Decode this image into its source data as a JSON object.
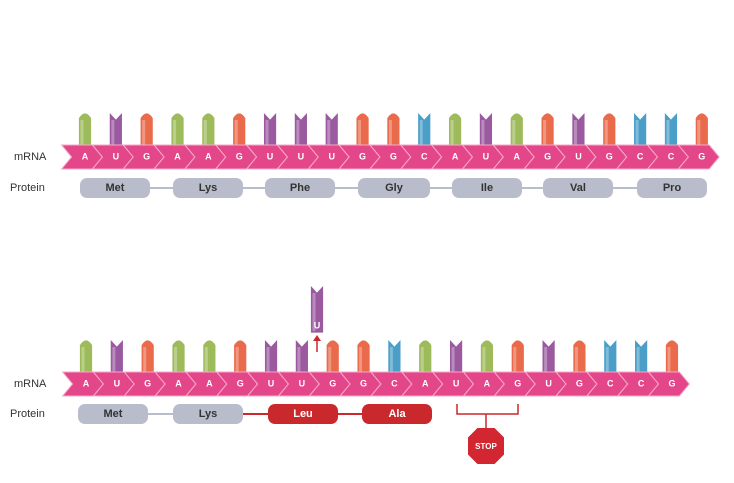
{
  "panels": [
    {
      "mrna_label": "mRNA",
      "protein_label": "Protein",
      "nucleotides": [
        "A",
        "U",
        "G",
        "A",
        "A",
        "G",
        "U",
        "U",
        "U",
        "G",
        "G",
        "C",
        "A",
        "U",
        "A",
        "G",
        "U",
        "G",
        "C",
        "C",
        "G"
      ],
      "proteins": [
        {
          "name": "Met",
          "color": "#b9bccb"
        },
        {
          "name": "Lys",
          "color": "#b9bccb"
        },
        {
          "name": "Phe",
          "color": "#b9bccb"
        },
        {
          "name": "Gly",
          "color": "#b9bccb"
        },
        {
          "name": "Ile",
          "color": "#b9bccb"
        },
        {
          "name": "Val",
          "color": "#b9bccb"
        },
        {
          "name": "Pro",
          "color": "#b9bccb"
        }
      ]
    },
    {
      "mrna_label": "mRNA",
      "protein_label": "Protein",
      "nucleotides": [
        "A",
        "U",
        "G",
        "A",
        "A",
        "G",
        "U",
        "U",
        "G",
        "G",
        "C",
        "A",
        "U",
        "A",
        "G",
        "U",
        "G",
        "C",
        "C",
        "G"
      ],
      "proteins": [
        {
          "name": "Met",
          "color": "#b9bccb"
        },
        {
          "name": "Lys",
          "color": "#b9bccb"
        },
        {
          "name": "Leu",
          "color": "#c9282d"
        },
        {
          "name": "Ala",
          "color": "#c9282d"
        }
      ]
    }
  ],
  "deleted": "U",
  "stop": "STOP"
}
